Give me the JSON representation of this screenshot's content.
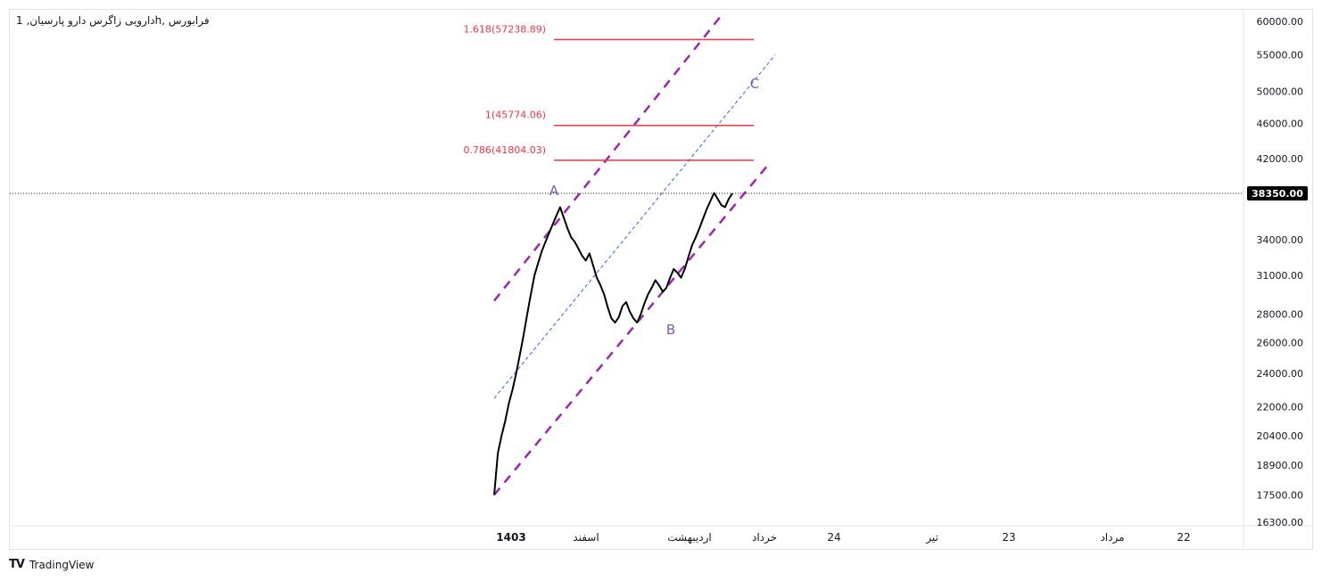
{
  "header": {
    "title": "فرابورس ,hدارویی زاگرس دارو پارسیان, 1"
  },
  "footer": {
    "brand": "TradingView",
    "logo_icon": "tradingview-logo-icon",
    "logo_text": "TV"
  },
  "chart_data": {
    "type": "line",
    "y_scale": "log",
    "ylim": [
      16300,
      61000
    ],
    "y_ticks": [
      "60000.00",
      "55000.00",
      "50000.00",
      "46000.00",
      "42000.00",
      "34000.00",
      "31000.00",
      "28000.00",
      "26000.00",
      "24000.00",
      "22000.00",
      "20400.00",
      "18900.00",
      "17500.00",
      "16300.00"
    ],
    "x_ticks": [
      {
        "label": "1403",
        "bold": true
      },
      {
        "label": "اسفند",
        "bold": false
      },
      {
        "label": "اردیبهشت",
        "bold": false
      },
      {
        "label": "خرداد",
        "bold": false
      },
      {
        "label": "24",
        "bold": false
      },
      {
        "label": "تیر",
        "bold": false
      },
      {
        "label": "23",
        "bold": false
      },
      {
        "label": "مرداد",
        "bold": false
      },
      {
        "label": "22",
        "bold": false
      }
    ],
    "last_price": {
      "value": 38350,
      "label": "38350.00",
      "color": "#000000"
    },
    "series": [
      {
        "color": "#000000",
        "values": [
          17500,
          19500,
          20400,
          21200,
          22200,
          23000,
          24000,
          25200,
          26500,
          28000,
          29500,
          31000,
          32000,
          33000,
          33800,
          34600,
          35400,
          36200,
          37000,
          36000,
          35000,
          34200,
          33800,
          33200,
          32600,
          32200,
          32800,
          31800,
          30800,
          30200,
          29500,
          28500,
          27700,
          27400,
          27800,
          28600,
          28900,
          28200,
          27700,
          27400,
          28000,
          28800,
          29500,
          30000,
          30600,
          30200,
          29700,
          30000,
          30800,
          31500,
          31200,
          30800,
          31500,
          32500,
          33500,
          34200,
          35000,
          35900,
          36800,
          37600,
          38400,
          37800,
          37200,
          37000,
          37800,
          38350
        ]
      }
    ],
    "fib_levels": [
      {
        "label": "1.618(57238.89)",
        "value": 57238.89,
        "color": "#f23645"
      },
      {
        "label": "1(45774.06)",
        "value": 45774.06,
        "color": "#f23645"
      },
      {
        "label": "0.786(41804.03)",
        "value": 41804.03,
        "color": "#f23645"
      }
    ],
    "wave_labels": [
      {
        "label": "A",
        "value": 38600
      },
      {
        "label": "B",
        "value": 26900
      },
      {
        "label": "C",
        "value": 51000
      }
    ],
    "channel_color": "#9c27b0",
    "midline_color": "#2962ff",
    "label_color": "#7e57c2"
  }
}
